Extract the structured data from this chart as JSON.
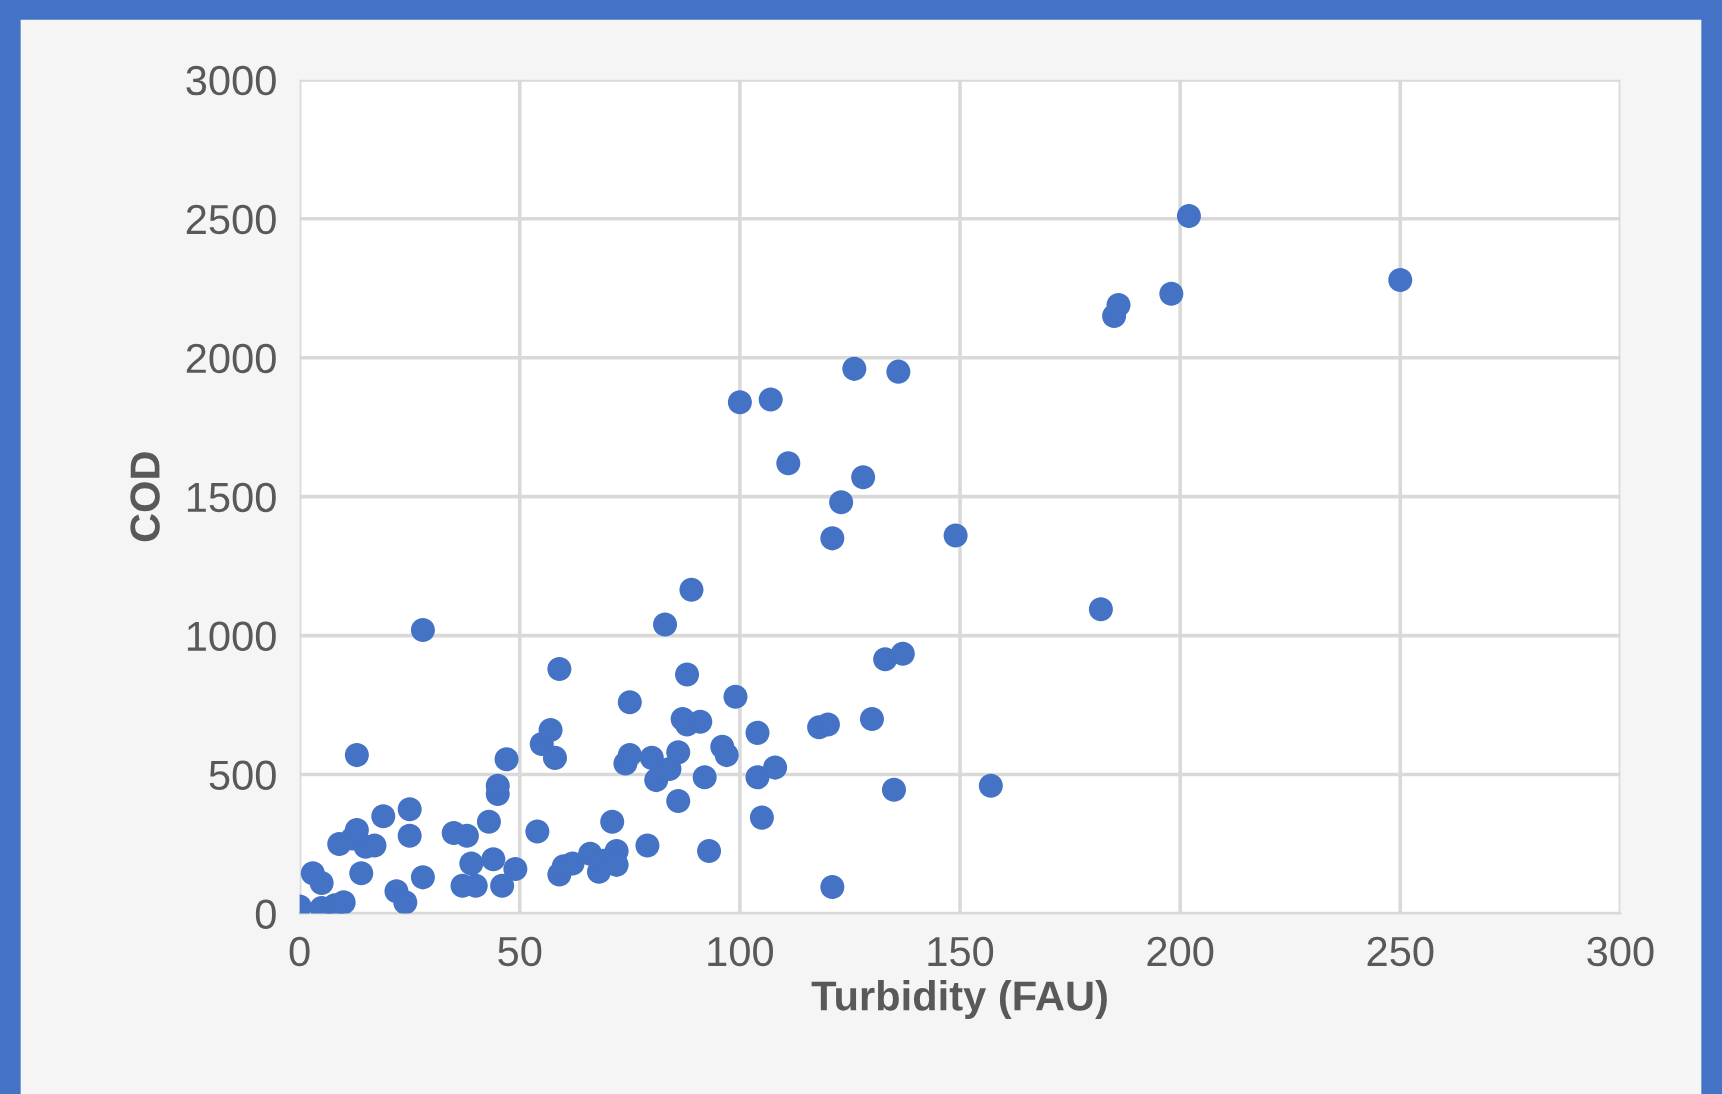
{
  "chart_data": {
    "type": "scatter",
    "xlabel": "Turbidity (FAU)",
    "ylabel": "COD",
    "xlim": [
      0,
      300
    ],
    "xticks": [
      0,
      50,
      100,
      150,
      200,
      250,
      300
    ],
    "ylim": [
      0,
      3000
    ],
    "yticks": [
      0,
      500,
      1000,
      1500,
      2000,
      2500,
      3000
    ],
    "grid": true,
    "marker": "circle",
    "legend": false,
    "series": [
      {
        "color": "#4472c4",
        "x": [
          0,
          3,
          5,
          5,
          8,
          10,
          9,
          12,
          13,
          14,
          13,
          15,
          17,
          19,
          22,
          24,
          25,
          25,
          28,
          28,
          35,
          37,
          38,
          39,
          40,
          43,
          44,
          45,
          45,
          46,
          47,
          49,
          54,
          55,
          57,
          58,
          59,
          59,
          60,
          62,
          66,
          68,
          69,
          71,
          72,
          72,
          74,
          75,
          75,
          79,
          80,
          81,
          83,
          84,
          86,
          86,
          87,
          88,
          88,
          89,
          91,
          92,
          93,
          96,
          97,
          99,
          100,
          104,
          104,
          105,
          107,
          108,
          111,
          118,
          120,
          121,
          121,
          123,
          126,
          128,
          130,
          133,
          135,
          136,
          137,
          149,
          157,
          182,
          185,
          186,
          198,
          202,
          250
        ],
        "values": [
          25,
          145,
          110,
          20,
          30,
          40,
          250,
          270,
          300,
          145,
          570,
          240,
          245,
          350,
          80,
          40,
          375,
          280,
          1020,
          130,
          290,
          100,
          280,
          180,
          100,
          330,
          195,
          430,
          460,
          100,
          555,
          160,
          295,
          610,
          660,
          560,
          880,
          140,
          170,
          180,
          215,
          150,
          190,
          330,
          225,
          175,
          540,
          760,
          570,
          245,
          560,
          480,
          1040,
          520,
          580,
          405,
          700,
          680,
          860,
          1165,
          690,
          490,
          225,
          600,
          570,
          780,
          1840,
          650,
          490,
          345,
          1850,
          525,
          1620,
          670,
          680,
          1350,
          95,
          1480,
          1960,
          1570,
          700,
          915,
          445,
          1950,
          935,
          1360,
          460,
          1095,
          2150,
          2190,
          2230,
          2510,
          2280
        ]
      }
    ]
  }
}
